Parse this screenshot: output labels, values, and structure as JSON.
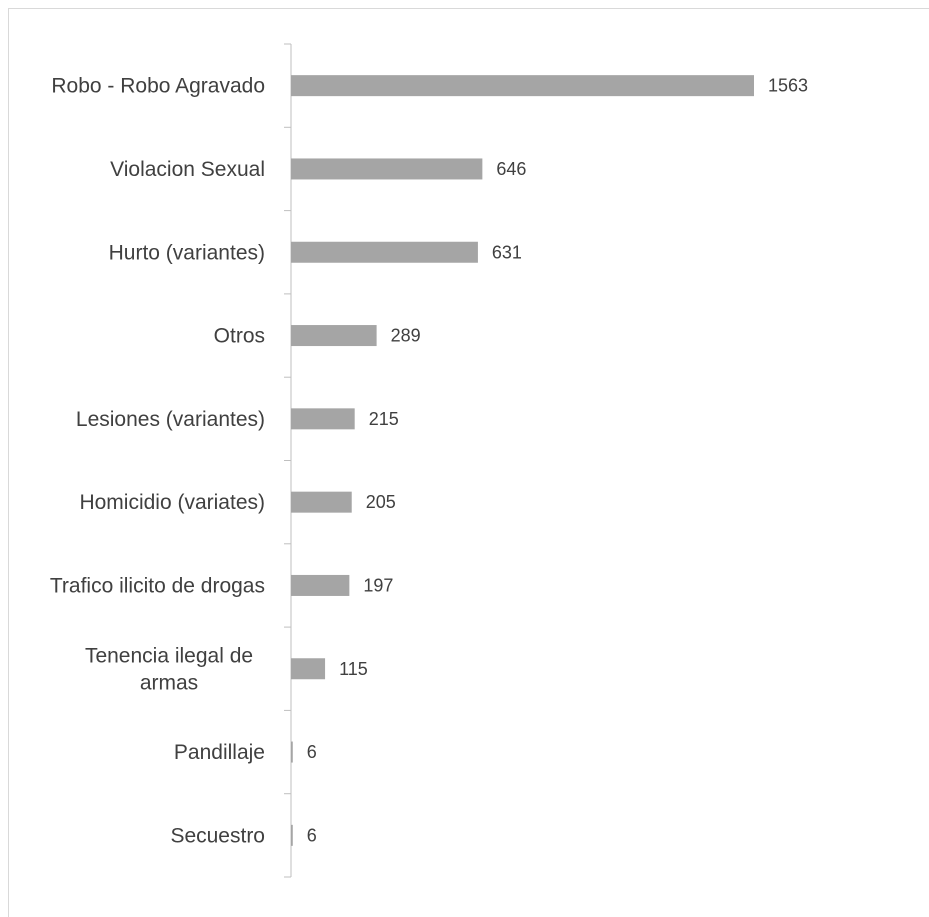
{
  "chart_data": {
    "type": "bar",
    "orientation": "horizontal",
    "categories": [
      "Robo - Robo Agravado",
      "Violacion Sexual",
      "Hurto (variantes)",
      "Otros",
      "Lesiones (variantes)",
      "Homicidio (variates)",
      "Trafico ilicito de drogas",
      "Tenencia ilegal de armas",
      "Pandillaje",
      "Secuestro"
    ],
    "category_lines": [
      [
        "Robo - Robo Agravado"
      ],
      [
        "Violacion Sexual"
      ],
      [
        "Hurto (variantes)"
      ],
      [
        "Otros"
      ],
      [
        "Lesiones (variantes)"
      ],
      [
        "Homicidio (variates)"
      ],
      [
        "Trafico ilicito de drogas"
      ],
      [
        "Tenencia ilegal de",
        "armas"
      ],
      [
        "Pandillaje"
      ],
      [
        "Secuestro"
      ]
    ],
    "values": [
      1563,
      646,
      631,
      289,
      215,
      205,
      197,
      115,
      6,
      6
    ],
    "data_labels": [
      "1563",
      "646",
      "631",
      "289",
      "215",
      "205",
      "197",
      "115",
      "6",
      "6"
    ],
    "title": "",
    "xlabel": "",
    "ylabel": "",
    "xlim": [
      0,
      1563
    ],
    "grid": false,
    "legend": "none",
    "colors": {
      "bar": "#a5a5a5",
      "axis": "#bfbfbf",
      "text": "#404040",
      "frame": "#d9d9d9"
    }
  }
}
